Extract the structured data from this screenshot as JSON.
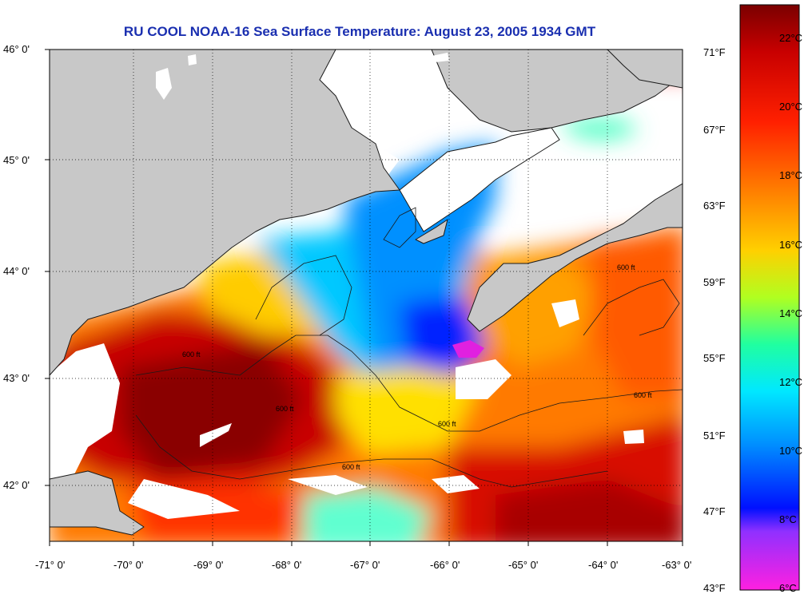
{
  "title": "RU COOL  NOAA-16  Sea Surface Temperature:  August 23, 2005 1934 GMT",
  "lat_labels": [
    "46° 0'",
    "45° 0'",
    "44° 0'",
    "43° 0'",
    "42° 0'"
  ],
  "lon_labels": [
    "-71° 0'",
    "-70° 0'",
    "-69° 0'",
    "-68° 0'",
    "-67° 0'",
    "-66° 0'",
    "-65° 0'",
    "-64° 0'",
    "-63° 0'"
  ],
  "fahrenheit_labels": [
    "71°F",
    "67°F",
    "63°F",
    "59°F",
    "55°F",
    "51°F",
    "47°F",
    "43°F"
  ],
  "celsius_labels": [
    "22°C",
    "20°C",
    "18°C",
    "16°C",
    "14°C",
    "12°C",
    "10°C",
    "8°C",
    "6°C"
  ],
  "contour_label": "600 ft",
  "colors": {
    "title": "#1a2fb0",
    "land": "#c8c8c8",
    "no_data": "#ffffff"
  }
}
